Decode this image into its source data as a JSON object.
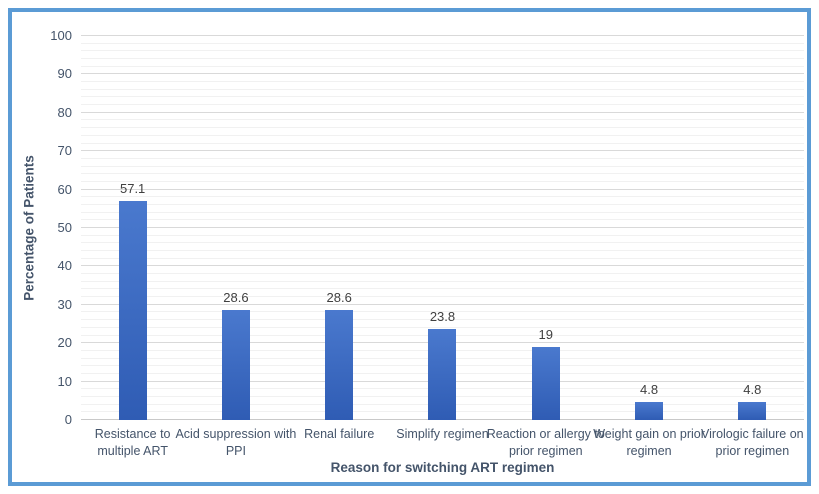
{
  "chart_data": {
    "type": "bar",
    "title": "",
    "xlabel": "Reason for switching ART regimen",
    "ylabel": "Percentage of Patients",
    "categories": [
      "Resistance to multiple ART",
      "Acid suppression with PPI",
      "Renal failure",
      "Simplify regimen",
      "Reaction or allergy to prior regimen",
      "Weight gain on prior regimen",
      "Virologic failure on prior regimen"
    ],
    "values": [
      57.1,
      28.6,
      28.6,
      23.8,
      19,
      4.8,
      4.8
    ],
    "data_labels": [
      "57.1",
      "28.6",
      "28.6",
      "23.8",
      "19",
      "4.8",
      "4.8"
    ],
    "category_label_lines": [
      [
        "Resistance to",
        "multiple ART"
      ],
      [
        "Acid suppression with",
        "PPI"
      ],
      [
        "Renal failure"
      ],
      [
        "Simplify regimen"
      ],
      [
        "Reaction or allergy to",
        "prior regimen"
      ],
      [
        "Weight gain on prior",
        "regimen"
      ],
      [
        "Virologic failure on",
        "prior regimen"
      ]
    ],
    "ylim": [
      0,
      100
    ],
    "yticks": [
      0,
      10,
      20,
      30,
      40,
      50,
      60,
      70,
      80,
      90,
      100
    ],
    "ytick_step": 10,
    "minor_gridline_step": 2,
    "grid": true,
    "legend": "none",
    "colors": {
      "bar_top": "#4A79CE",
      "bar_bottom": "#2F5CB4",
      "frame_border": "#5B9BD5",
      "major_gridline": "#D9D9D9",
      "minor_gridline": "#F1F1F1",
      "axis_line": "#C9C9C9",
      "data_label": "#404040",
      "tick_label": "#44546A",
      "axis_title": "#44546A"
    }
  }
}
